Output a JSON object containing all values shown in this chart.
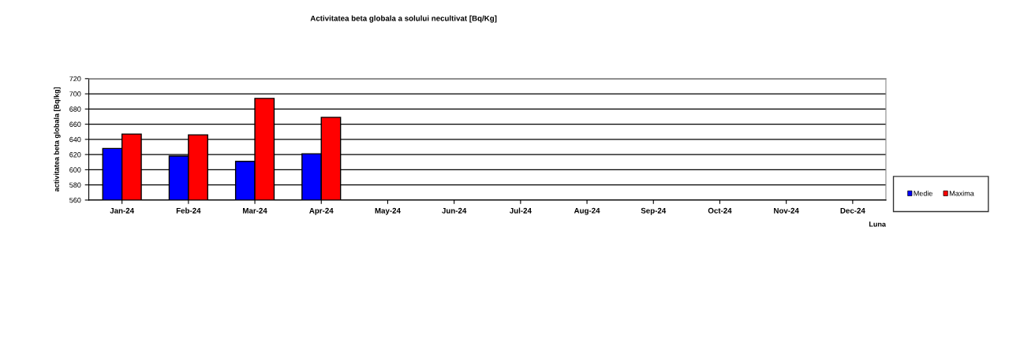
{
  "chart_data": {
    "type": "bar",
    "title": "Activitatea beta globala a solului necultivat [Bq/Kg]",
    "xlabel": "Luna",
    "ylabel": "activitatea beta globala [Bq/kg]",
    "categories": [
      "Jan-24",
      "Feb-24",
      "Mar-24",
      "Apr-24",
      "May-24",
      "Jun-24",
      "Jul-24",
      "Aug-24",
      "Sep-24",
      "Oct-24",
      "Nov-24",
      "Dec-24"
    ],
    "series": [
      {
        "name": "Medie",
        "color": "#0000ff",
        "values": [
          628,
          618,
          611,
          621,
          null,
          null,
          null,
          null,
          null,
          null,
          null,
          null
        ]
      },
      {
        "name": "Maxima",
        "color": "#ff0000",
        "values": [
          647,
          646,
          694,
          669,
          null,
          null,
          null,
          null,
          null,
          null,
          null,
          null
        ]
      }
    ],
    "ylim": [
      560,
      720
    ],
    "yticks": [
      560,
      580,
      600,
      620,
      640,
      660,
      680,
      700,
      720
    ],
    "grid": "y",
    "legend": "right"
  }
}
